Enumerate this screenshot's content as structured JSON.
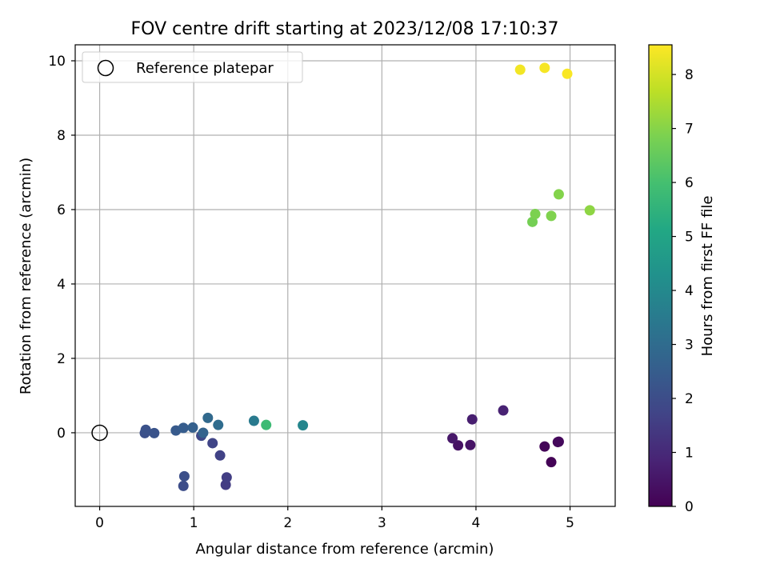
{
  "chart_data": {
    "type": "scatter",
    "title": "FOV centre drift starting at 2023/12/08 17:10:37",
    "xlabel": "Angular distance from reference (arcmin)",
    "ylabel": "Rotation from reference (arcmin)",
    "xlim": [
      -0.26,
      5.48
    ],
    "ylim": [
      -1.98,
      10.43
    ],
    "xticks": [
      0,
      1,
      2,
      3,
      4,
      5
    ],
    "yticks": [
      0,
      2,
      4,
      6,
      8,
      10
    ],
    "grid": true,
    "legend": {
      "position": "top-left",
      "entries": [
        "Reference platepar"
      ]
    },
    "reference_point": {
      "x": 0,
      "y": 0,
      "marker": "open-circle"
    },
    "colorbar": {
      "label": "Hours from first FF file",
      "colormap": "viridis",
      "range": [
        0,
        8.55
      ],
      "ticks": [
        0,
        1,
        2,
        3,
        4,
        5,
        6,
        7,
        8
      ]
    },
    "points": [
      {
        "x": 4.8,
        "y": -0.79,
        "hours": 0.05
      },
      {
        "x": 4.73,
        "y": -0.37,
        "hours": 0.1
      },
      {
        "x": 4.87,
        "y": -0.25,
        "hours": 0.15
      },
      {
        "x": 4.88,
        "y": -0.24,
        "hours": 0.2
      },
      {
        "x": 3.81,
        "y": -0.34,
        "hours": 0.4
      },
      {
        "x": 3.94,
        "y": -0.33,
        "hours": 0.45
      },
      {
        "x": 3.75,
        "y": -0.15,
        "hours": 0.55
      },
      {
        "x": 3.96,
        "y": 0.36,
        "hours": 0.7
      },
      {
        "x": 4.29,
        "y": 0.6,
        "hours": 0.8
      },
      {
        "x": 1.34,
        "y": -1.4,
        "hours": 1.5
      },
      {
        "x": 1.35,
        "y": -1.2,
        "hours": 1.55
      },
      {
        "x": 1.28,
        "y": -0.61,
        "hours": 1.65
      },
      {
        "x": 1.2,
        "y": -0.28,
        "hours": 1.75
      },
      {
        "x": 1.08,
        "y": -0.08,
        "hours": 1.85
      },
      {
        "x": 0.89,
        "y": -1.43,
        "hours": 2.0
      },
      {
        "x": 0.9,
        "y": -1.17,
        "hours": 2.05
      },
      {
        "x": 0.48,
        "y": -0.01,
        "hours": 2.1
      },
      {
        "x": 0.49,
        "y": 0.08,
        "hours": 2.15
      },
      {
        "x": 0.58,
        "y": -0.01,
        "hours": 2.2
      },
      {
        "x": 0.81,
        "y": 0.06,
        "hours": 2.4
      },
      {
        "x": 0.89,
        "y": 0.13,
        "hours": 2.5
      },
      {
        "x": 0.99,
        "y": 0.14,
        "hours": 2.6
      },
      {
        "x": 1.1,
        "y": 0.0,
        "hours": 2.7
      },
      {
        "x": 1.15,
        "y": 0.4,
        "hours": 2.9
      },
      {
        "x": 1.26,
        "y": 0.21,
        "hours": 3.0
      },
      {
        "x": 1.64,
        "y": 0.32,
        "hours": 3.5
      },
      {
        "x": 2.16,
        "y": 0.2,
        "hours": 3.9
      },
      {
        "x": 1.77,
        "y": 0.21,
        "hours": 5.8
      },
      {
        "x": 4.6,
        "y": 5.67,
        "hours": 6.75
      },
      {
        "x": 4.63,
        "y": 5.88,
        "hours": 6.85
      },
      {
        "x": 4.8,
        "y": 5.83,
        "hours": 6.9
      },
      {
        "x": 4.88,
        "y": 6.41,
        "hours": 6.95
      },
      {
        "x": 5.21,
        "y": 5.98,
        "hours": 7.1
      },
      {
        "x": 4.47,
        "y": 9.76,
        "hours": 8.4
      },
      {
        "x": 4.73,
        "y": 9.81,
        "hours": 8.45
      },
      {
        "x": 4.97,
        "y": 9.65,
        "hours": 8.5
      }
    ]
  }
}
